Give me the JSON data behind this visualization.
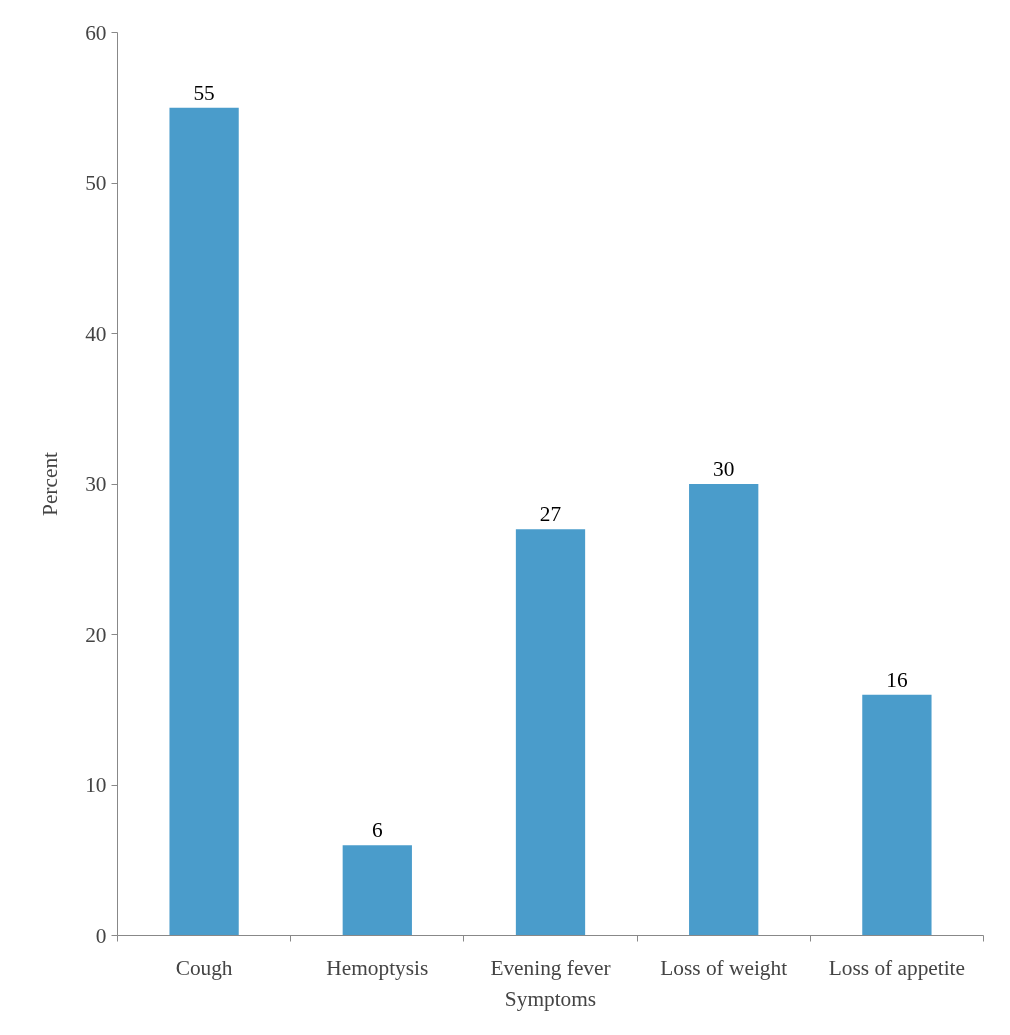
{
  "chart_data": {
    "type": "bar",
    "xlabel": "Symptoms",
    "ylabel": "Percent",
    "categories": [
      "Cough",
      "Hemoptysis",
      "Evening fever",
      "Loss of weight",
      "Loss of appetite"
    ],
    "values": [
      55,
      6,
      27,
      30,
      16
    ],
    "color": "#4a9ccb",
    "ylim": [
      0,
      60
    ],
    "yticks": [
      0,
      10,
      20,
      30,
      40,
      50,
      60
    ],
    "grid": false,
    "data_labels": true
  }
}
